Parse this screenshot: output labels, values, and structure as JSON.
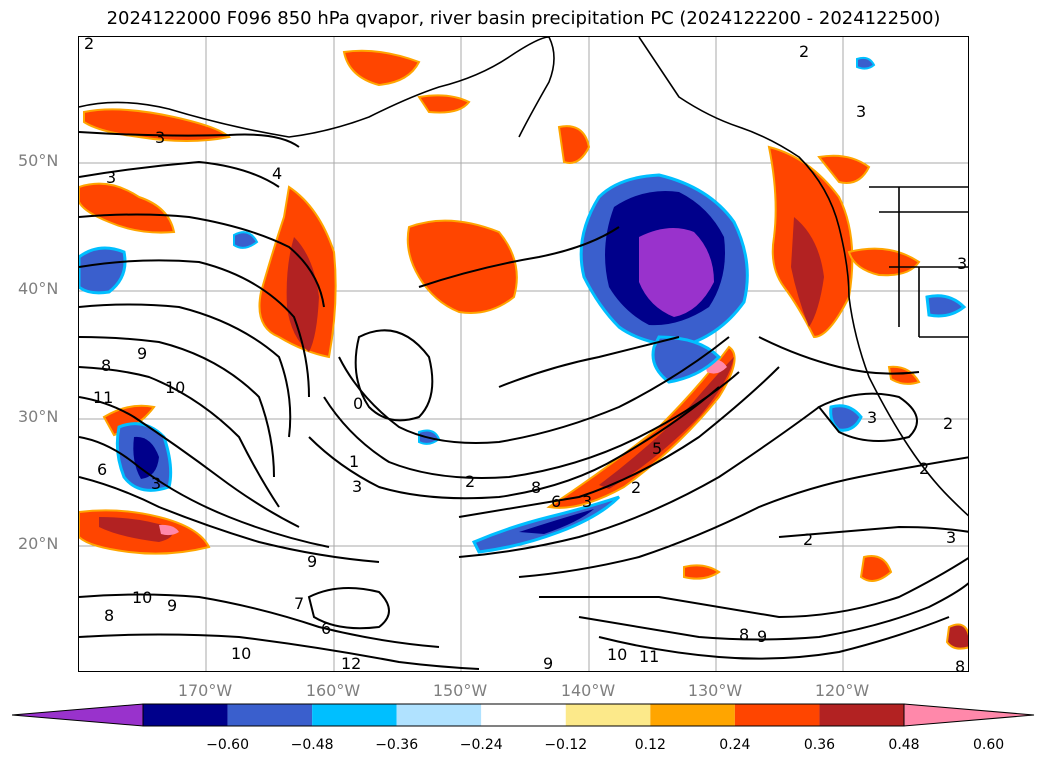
{
  "title": "2024122000 F096 850 hPa qvapor, river basin precipitation PC (2024122200 - 2024122500)",
  "lat_labels": [
    "50°N",
    "40°N",
    "30°N",
    "20°N"
  ],
  "lon_labels": [
    "170°W",
    "160°W",
    "150°W",
    "140°W",
    "130°W",
    "120°W"
  ],
  "colorbar": {
    "ticks": [
      "−0.60",
      "−0.48",
      "−0.36",
      "−0.24",
      "−0.12",
      "0.12",
      "0.24",
      "0.36",
      "0.48",
      "0.60"
    ],
    "colors": [
      "#9932cc",
      "#00008b",
      "#3a5fcd",
      "#00bfff",
      "#b0e2ff",
      "#ffffff",
      "#fce98a",
      "#ffa500",
      "#ff4500",
      "#b22222",
      "#ff88aa"
    ]
  },
  "contour_labels": [
    "2",
    "3",
    "3",
    "4",
    "3",
    "8",
    "9",
    "11",
    "10",
    "6",
    "3",
    "0",
    "1",
    "3",
    "2",
    "8",
    "6",
    "3",
    "5",
    "2",
    "9",
    "7",
    "6",
    "10",
    "8",
    "9",
    "10",
    "12",
    "9",
    "10",
    "11",
    "8",
    "9",
    "2",
    "3",
    "3",
    "2",
    "2",
    "3",
    "2",
    "8"
  ]
}
